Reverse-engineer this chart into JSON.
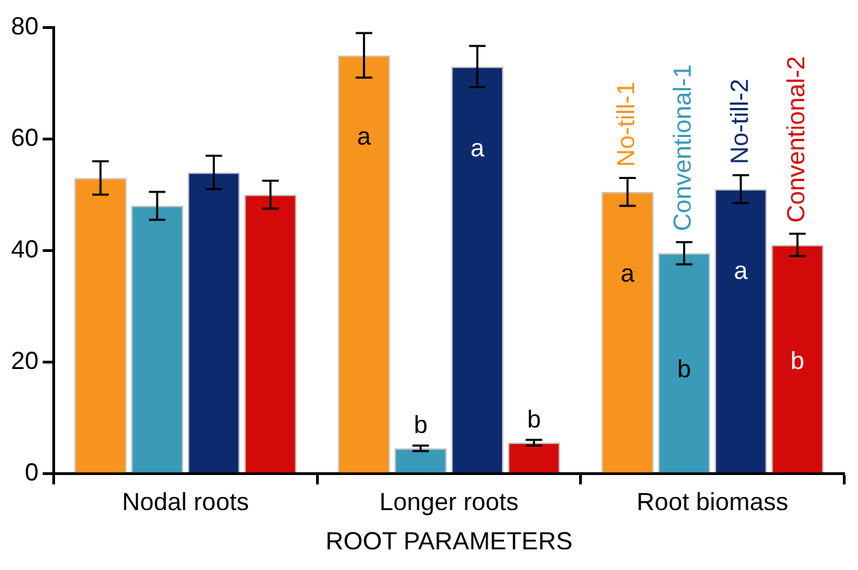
{
  "chart_data": {
    "type": "bar",
    "xlabel": "ROOT PARAMETERS",
    "categories": [
      "Nodal roots",
      "Longer roots",
      "Root biomass"
    ],
    "series": [
      {
        "name": "No-till-1",
        "color": "#f7941d",
        "values": [
          53,
          75,
          50.5
        ],
        "errors": [
          3,
          4,
          2.5
        ],
        "value_labels": [
          null,
          "a",
          "a"
        ]
      },
      {
        "name": "Conventional-1",
        "color": "#3a9ab8",
        "values": [
          48,
          4.5,
          39.5
        ],
        "errors": [
          2.5,
          0.5,
          2
        ],
        "value_labels": [
          null,
          "b",
          "b"
        ]
      },
      {
        "name": "No-till-2",
        "color": "#0d2a6e",
        "values": [
          54,
          73,
          51
        ],
        "errors": [
          3,
          3.7,
          2.5
        ],
        "value_labels": [
          null,
          "a",
          "a"
        ]
      },
      {
        "name": "Conventional-2",
        "color": "#d40a0a",
        "values": [
          50,
          5.5,
          41
        ],
        "errors": [
          2.5,
          0.5,
          2
        ],
        "value_labels": [
          null,
          "b",
          "b"
        ]
      }
    ],
    "ylim": [
      0,
      80
    ],
    "yticks": [
      0,
      20,
      40,
      60,
      80
    ],
    "grid": false,
    "legend": false
  }
}
